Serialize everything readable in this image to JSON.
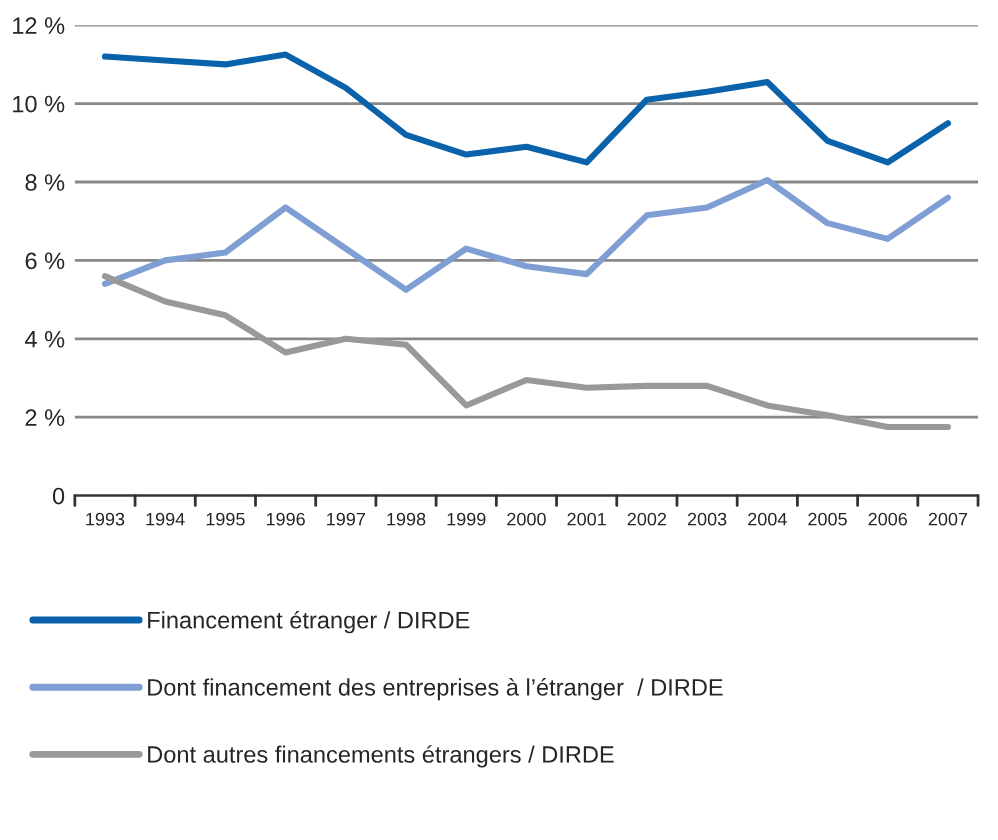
{
  "chart_data": {
    "type": "line",
    "categories": [
      "1993",
      "1994",
      "1995",
      "1996",
      "1997",
      "1998",
      "1999",
      "2000",
      "2001",
      "2002",
      "2003",
      "2004",
      "2005",
      "2006",
      "2007"
    ],
    "series": [
      {
        "name": "Financement étranger / DIRDE",
        "color": "#0a62aa",
        "values": [
          11.2,
          11.1,
          11.0,
          11.25,
          10.4,
          9.2,
          8.7,
          8.9,
          8.5,
          10.1,
          10.3,
          10.55,
          9.05,
          8.5,
          9.5
        ]
      },
      {
        "name": "Dont financement des entreprises à l’étranger  / DIRDE",
        "color": "#7f9fd4",
        "values": [
          5.4,
          6.0,
          6.2,
          7.35,
          6.3,
          5.25,
          6.3,
          5.85,
          5.65,
          7.15,
          7.35,
          8.05,
          6.95,
          6.55,
          7.6
        ]
      },
      {
        "name": "Dont autres financements étrangers / DIRDE",
        "color": "#999999",
        "values": [
          5.6,
          4.95,
          4.6,
          3.65,
          4.0,
          3.85,
          2.3,
          2.95,
          2.75,
          2.8,
          2.8,
          2.3,
          2.05,
          1.75,
          1.75
        ]
      }
    ],
    "ylim": [
      0,
      12
    ],
    "yticks": [
      0,
      {
        "value": 2,
        "label": "2 %"
      },
      {
        "value": 4,
        "label": "4 %"
      },
      {
        "value": 6,
        "label": "6 %"
      },
      {
        "value": 8,
        "label": "8 %"
      },
      {
        "value": 10,
        "label": "10 %"
      },
      {
        "value": 12,
        "label": "12 %"
      }
    ],
    "grid": "y",
    "legend": "bottom",
    "marker": "none",
    "line_style": "solid"
  }
}
